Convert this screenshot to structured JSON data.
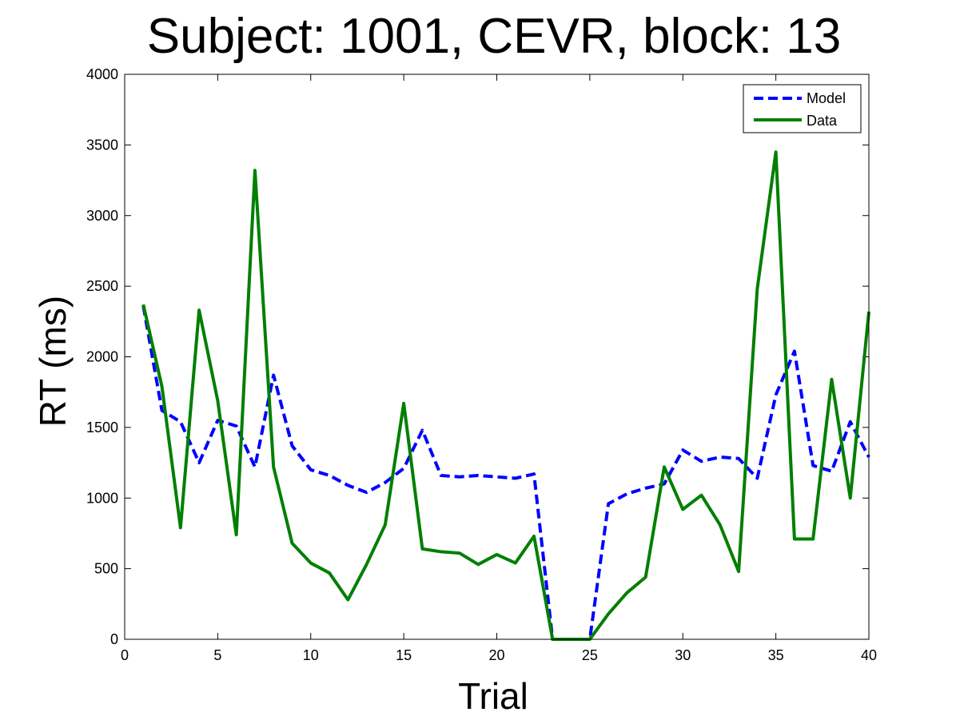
{
  "chart_data": {
    "type": "line",
    "title": "Subject: 1001, CEVR, block: 13",
    "xlabel": "Trial",
    "ylabel": "RT (ms)",
    "xlim": [
      0,
      40
    ],
    "ylim": [
      0,
      4000
    ],
    "xticks": [
      0,
      5,
      10,
      15,
      20,
      25,
      30,
      35,
      40
    ],
    "yticks": [
      0,
      500,
      1000,
      1500,
      2000,
      2500,
      3000,
      3500,
      4000
    ],
    "grid": false,
    "legend": "top-right",
    "x": [
      1,
      2,
      3,
      4,
      5,
      6,
      7,
      8,
      9,
      10,
      11,
      12,
      13,
      14,
      15,
      16,
      17,
      18,
      19,
      20,
      21,
      22,
      23,
      24,
      25,
      26,
      27,
      28,
      29,
      30,
      31,
      32,
      33,
      34,
      35,
      36,
      37,
      38,
      39,
      40
    ],
    "series": [
      {
        "name": "Model",
        "color": "#0000ff",
        "style": "dashed",
        "values": [
          2360,
          1620,
          1540,
          1250,
          1550,
          1510,
          1220,
          1870,
          1370,
          1200,
          1160,
          1090,
          1040,
          1110,
          1210,
          1480,
          1160,
          1150,
          1160,
          1150,
          1140,
          1170,
          0,
          0,
          0,
          960,
          1030,
          1070,
          1100,
          1340,
          1260,
          1290,
          1280,
          1140,
          1730,
          2040,
          1230,
          1190,
          1540,
          1290
        ]
      },
      {
        "name": "Data",
        "color": "#007f00",
        "style": "solid",
        "values": [
          2370,
          1790,
          790,
          2330,
          1690,
          740,
          3320,
          1220,
          680,
          540,
          470,
          280,
          530,
          810,
          1670,
          640,
          620,
          610,
          530,
          600,
          540,
          730,
          0,
          0,
          0,
          180,
          330,
          440,
          1220,
          920,
          1020,
          810,
          480,
          2480,
          3450,
          710,
          710,
          1840,
          1000,
          2320
        ]
      }
    ]
  }
}
